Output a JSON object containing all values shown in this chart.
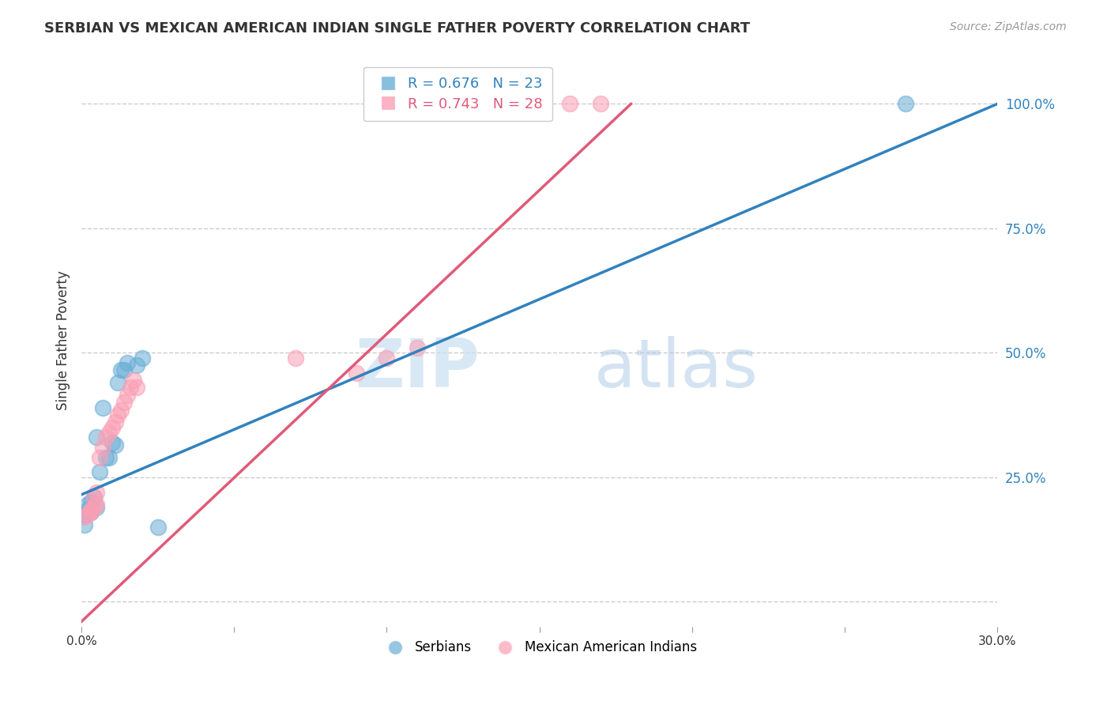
{
  "title": "SERBIAN VS MEXICAN AMERICAN INDIAN SINGLE FATHER POVERTY CORRELATION CHART",
  "source": "Source: ZipAtlas.com",
  "ylabel": "Single Father Poverty",
  "xlim": [
    0.0,
    0.3
  ],
  "ylim": [
    -0.05,
    1.1
  ],
  "right_yticks": [
    0.0,
    0.25,
    0.5,
    0.75,
    1.0
  ],
  "right_yticklabels": [
    "",
    "25.0%",
    "50.0%",
    "75.0%",
    "100.0%"
  ],
  "xticks": [
    0.0,
    0.05,
    0.1,
    0.15,
    0.2,
    0.25,
    0.3
  ],
  "xticklabels": [
    "0.0%",
    "",
    "",
    "",
    "",
    "",
    "30.0%"
  ],
  "grid_color": "#cccccc",
  "background_color": "#ffffff",
  "blue_color": "#6baed6",
  "pink_color": "#fa9fb5",
  "blue_line_color": "#3182bd",
  "pink_line_color": "#e05a7a",
  "legend_blue_R": "R = 0.676",
  "legend_blue_N": "N = 23",
  "legend_pink_R": "R = 0.743",
  "legend_pink_N": "N = 28",
  "watermark_zip": "ZIP",
  "watermark_atlas": "atlas",
  "serbian_x": [
    0.001,
    0.003,
    0.002,
    0.005,
    0.004,
    0.003,
    0.002,
    0.001,
    0.006,
    0.008,
    0.005,
    0.009,
    0.011,
    0.01,
    0.012,
    0.007,
    0.013,
    0.015,
    0.014,
    0.018,
    0.02,
    0.025,
    0.27
  ],
  "serbian_y": [
    0.175,
    0.18,
    0.185,
    0.19,
    0.21,
    0.2,
    0.195,
    0.155,
    0.26,
    0.29,
    0.33,
    0.29,
    0.315,
    0.32,
    0.44,
    0.39,
    0.465,
    0.48,
    0.465,
    0.475,
    0.49,
    0.15,
    1.0
  ],
  "mexican_x": [
    0.001,
    0.002,
    0.003,
    0.003,
    0.004,
    0.005,
    0.004,
    0.005,
    0.006,
    0.007,
    0.008,
    0.009,
    0.01,
    0.011,
    0.012,
    0.013,
    0.014,
    0.015,
    0.016,
    0.017,
    0.018,
    0.07,
    0.09,
    0.1,
    0.11,
    0.13,
    0.16,
    0.17
  ],
  "mexican_y": [
    0.17,
    0.175,
    0.18,
    0.185,
    0.19,
    0.195,
    0.21,
    0.22,
    0.29,
    0.31,
    0.33,
    0.34,
    0.35,
    0.36,
    0.375,
    0.385,
    0.4,
    0.415,
    0.43,
    0.445,
    0.43,
    0.49,
    0.46,
    0.49,
    0.51,
    1.0,
    1.0,
    1.0
  ],
  "blue_line_x0": 0.0,
  "blue_line_y0": 0.215,
  "blue_line_x1": 0.3,
  "blue_line_y1": 1.0,
  "pink_line_x0": 0.0,
  "pink_line_y0": -0.04,
  "pink_line_x1": 0.18,
  "pink_line_y1": 1.0
}
